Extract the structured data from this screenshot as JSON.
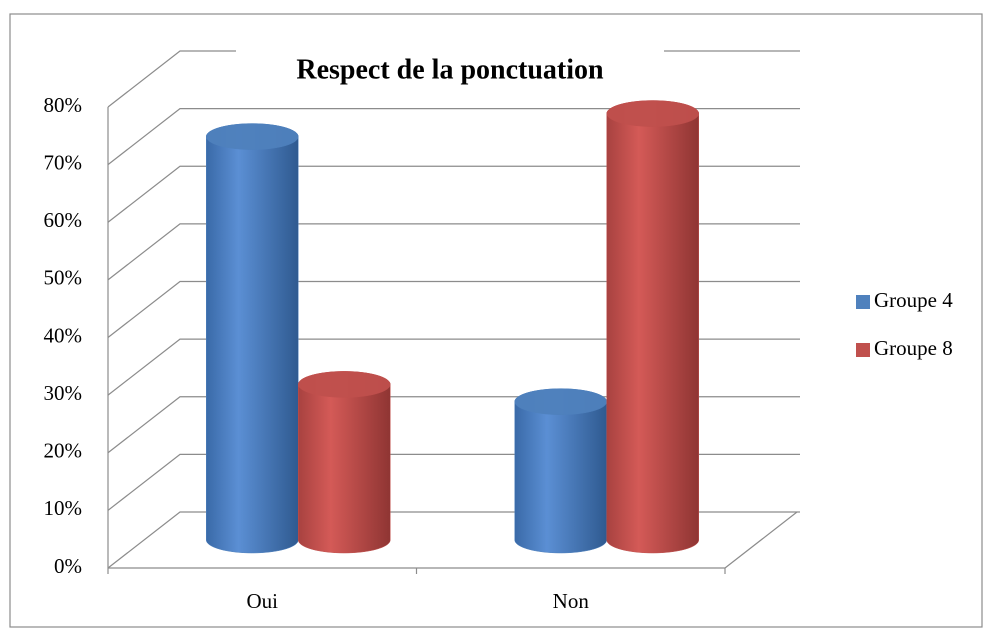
{
  "chart_data": {
    "type": "bar3d",
    "title": "Respect de la ponctuation",
    "categories": [
      "Oui",
      "Non"
    ],
    "series": [
      {
        "name": "Groupe 4",
        "color": "#4f81bd",
        "values": [
          70,
          24
        ]
      },
      {
        "name": "Groupe 8",
        "color": "#c0504d",
        "values": [
          27,
          74
        ]
      }
    ],
    "ylim": [
      0,
      80
    ],
    "yticks": [
      {
        "value": 0,
        "label": "0%"
      },
      {
        "value": 10,
        "label": "10%"
      },
      {
        "value": 20,
        "label": "20%"
      },
      {
        "value": 30,
        "label": "30%"
      },
      {
        "value": 40,
        "label": "40%"
      },
      {
        "value": 50,
        "label": "50%"
      },
      {
        "value": 60,
        "label": "60%"
      },
      {
        "value": 70,
        "label": "70%"
      },
      {
        "value": 80,
        "label": "80%"
      }
    ],
    "grid": true,
    "legend": "right"
  }
}
